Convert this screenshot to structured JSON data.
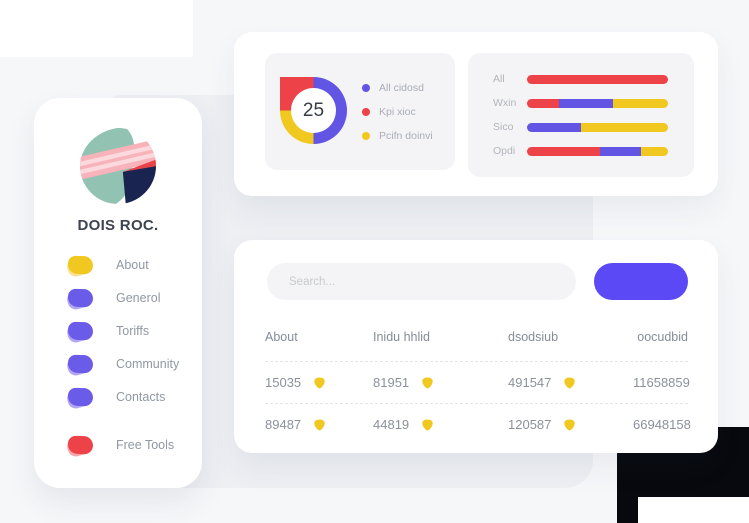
{
  "theme": {
    "red": "#ee4249",
    "red_light": "#f58f94",
    "yellow": "#f1c81f",
    "yellow_light": "#f6da6a",
    "purple": "#6a5be8",
    "purple_light": "#9d90f3",
    "chart_blue": "#6355e4",
    "button_blue": "#5a49f4",
    "dark_shape": "#07090e"
  },
  "sidebar": {
    "brand": "DOIS ROC.",
    "items": [
      {
        "label": "About",
        "color": "yellow"
      },
      {
        "label": "Generol",
        "color": "purple"
      },
      {
        "label": "Toriffs",
        "color": "purple"
      },
      {
        "label": "Community",
        "color": "purple"
      },
      {
        "label": "Contacts",
        "color": "purple"
      },
      {
        "label": "Free Tools",
        "color": "red"
      }
    ]
  },
  "chart_data": [
    {
      "type": "pie",
      "subtype": "donut",
      "center_label": "25",
      "slices": [
        {
          "label": "All cidosd",
          "value": 50,
          "color": "#6355e4"
        },
        {
          "label": "Kpi xioc",
          "value": 25,
          "color": "#ee4249"
        },
        {
          "label": "Pcifn doinvi",
          "value": 25,
          "color": "#f1c81f"
        }
      ],
      "draw_order": [
        0,
        2,
        1
      ],
      "legend_position": "right"
    },
    {
      "type": "bar",
      "orientation": "horizontal",
      "stacked": true,
      "unit": "percent",
      "rows": [
        {
          "label": "All",
          "segments": [
            {
              "color": "red",
              "pct": 100
            }
          ]
        },
        {
          "label": "Wxin",
          "segments": [
            {
              "color": "red",
              "pct": 23
            },
            {
              "color": "chart_blue",
              "pct": 38
            },
            {
              "color": "yellow",
              "pct": 39
            }
          ]
        },
        {
          "label": "Sico",
          "segments": [
            {
              "color": "chart_blue",
              "pct": 38
            },
            {
              "color": "yellow",
              "pct": 62
            }
          ]
        },
        {
          "label": "Opdi",
          "segments": [
            {
              "color": "red",
              "pct": 52
            },
            {
              "color": "chart_blue",
              "pct": 29
            },
            {
              "color": "yellow",
              "pct": 19
            }
          ]
        }
      ]
    }
  ],
  "bottom_card": {
    "search": {
      "placeholder": "Search..."
    },
    "table": {
      "headers": [
        "About",
        "Inidu hhlid",
        "dsodsiub",
        "oocudbid"
      ],
      "rows": [
        {
          "cells": [
            {
              "value": "15035",
              "icon": "shield"
            },
            {
              "value": "81951",
              "icon": "shield"
            },
            {
              "value": "491547",
              "icon": "shield"
            },
            {
              "value": "11658859"
            }
          ]
        },
        {
          "cells": [
            {
              "value": "89487",
              "icon": "shield"
            },
            {
              "value": "44819",
              "icon": "shield"
            },
            {
              "value": "120587",
              "icon": "shield"
            },
            {
              "value": "66948158"
            }
          ]
        }
      ]
    }
  }
}
